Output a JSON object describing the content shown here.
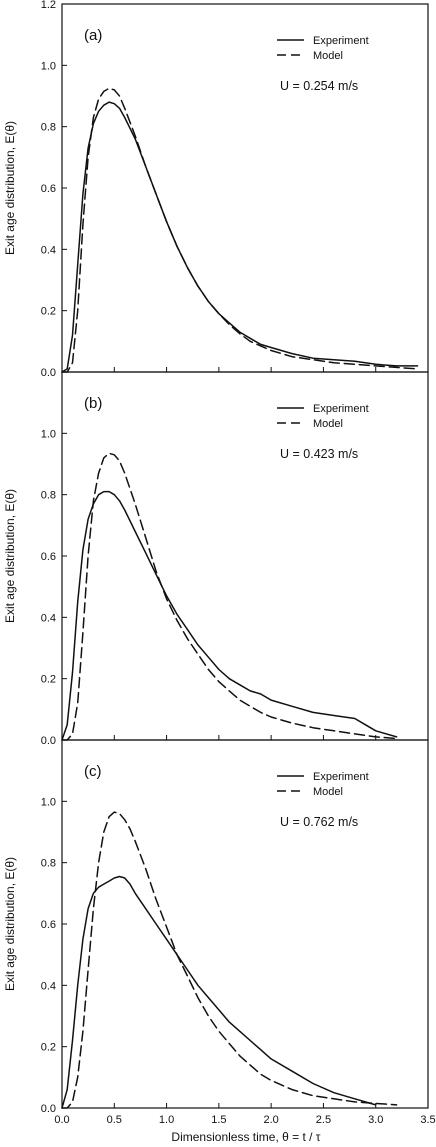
{
  "figure": {
    "xlabel": "Dimensionless time, θ = t / τ",
    "x_ticks": [
      "0.0",
      "0.5",
      "1.0",
      "1.5",
      "2.0",
      "2.5",
      "3.0",
      "3.5"
    ]
  },
  "chart_data": [
    {
      "type": "line",
      "panel_label": "(a)",
      "annotation": "U = 0.254 m/s",
      "ylabel": "Exit age distribution, E(θ)",
      "xlim": [
        0,
        3.5
      ],
      "ylim": [
        0,
        1.2
      ],
      "y_ticks": [
        "0.0",
        "0.2",
        "0.4",
        "0.6",
        "0.8",
        "1.0",
        "1.2"
      ],
      "legend": {
        "position": "top-right",
        "entries": [
          "Experiment",
          "Model"
        ]
      },
      "series": [
        {
          "name": "Experiment",
          "style": "solid",
          "x": [
            0.0,
            0.05,
            0.1,
            0.15,
            0.2,
            0.25,
            0.3,
            0.35,
            0.4,
            0.45,
            0.5,
            0.55,
            0.6,
            0.7,
            0.8,
            0.9,
            1.0,
            1.1,
            1.2,
            1.3,
            1.4,
            1.5,
            1.6,
            1.7,
            1.8,
            1.9,
            2.0,
            2.2,
            2.4,
            2.6,
            2.8,
            3.0,
            3.2,
            3.4
          ],
          "y": [
            0.0,
            0.01,
            0.12,
            0.35,
            0.58,
            0.73,
            0.81,
            0.85,
            0.87,
            0.88,
            0.875,
            0.86,
            0.83,
            0.76,
            0.67,
            0.58,
            0.49,
            0.41,
            0.34,
            0.28,
            0.23,
            0.19,
            0.16,
            0.13,
            0.11,
            0.09,
            0.08,
            0.06,
            0.045,
            0.04,
            0.035,
            0.025,
            0.02,
            0.02
          ]
        },
        {
          "name": "Model",
          "style": "dashed",
          "x": [
            0.0,
            0.05,
            0.1,
            0.15,
            0.2,
            0.25,
            0.3,
            0.35,
            0.4,
            0.45,
            0.5,
            0.55,
            0.6,
            0.7,
            0.8,
            0.9,
            1.0,
            1.1,
            1.2,
            1.3,
            1.4,
            1.5,
            1.6,
            1.7,
            1.8,
            1.9,
            2.0,
            2.2,
            2.4,
            2.6,
            2.8,
            3.0,
            3.2,
            3.4
          ],
          "y": [
            0.0,
            0.0,
            0.03,
            0.2,
            0.48,
            0.7,
            0.83,
            0.89,
            0.915,
            0.925,
            0.92,
            0.9,
            0.86,
            0.77,
            0.67,
            0.58,
            0.49,
            0.41,
            0.34,
            0.28,
            0.23,
            0.19,
            0.155,
            0.125,
            0.1,
            0.085,
            0.07,
            0.05,
            0.04,
            0.03,
            0.025,
            0.02,
            0.015,
            0.01
          ]
        }
      ]
    },
    {
      "type": "line",
      "panel_label": "(b)",
      "annotation": "U = 0.423 m/s",
      "ylabel": "Exit age distribution, E(θ)",
      "xlim": [
        0,
        3.5
      ],
      "ylim": [
        0,
        1.2
      ],
      "y_ticks": [
        "0.0",
        "0.2",
        "0.4",
        "0.6",
        "0.8",
        "1.0"
      ],
      "legend": {
        "position": "top-right",
        "entries": [
          "Experiment",
          "Model"
        ]
      },
      "series": [
        {
          "name": "Experiment",
          "style": "solid",
          "x": [
            0.0,
            0.05,
            0.1,
            0.15,
            0.2,
            0.25,
            0.3,
            0.35,
            0.4,
            0.45,
            0.5,
            0.55,
            0.6,
            0.7,
            0.8,
            0.9,
            1.0,
            1.1,
            1.2,
            1.3,
            1.4,
            1.5,
            1.6,
            1.7,
            1.8,
            1.9,
            2.0,
            2.2,
            2.4,
            2.6,
            2.8,
            2.9,
            3.0,
            3.2
          ],
          "y": [
            0.0,
            0.05,
            0.22,
            0.45,
            0.62,
            0.72,
            0.77,
            0.8,
            0.81,
            0.81,
            0.8,
            0.78,
            0.75,
            0.68,
            0.61,
            0.54,
            0.47,
            0.41,
            0.36,
            0.31,
            0.27,
            0.23,
            0.2,
            0.18,
            0.16,
            0.15,
            0.13,
            0.11,
            0.09,
            0.08,
            0.07,
            0.05,
            0.03,
            0.01
          ]
        },
        {
          "name": "Model",
          "style": "dashed",
          "x": [
            0.0,
            0.05,
            0.1,
            0.15,
            0.2,
            0.25,
            0.3,
            0.35,
            0.4,
            0.45,
            0.5,
            0.55,
            0.6,
            0.7,
            0.8,
            0.9,
            1.0,
            1.1,
            1.2,
            1.3,
            1.4,
            1.5,
            1.6,
            1.7,
            1.8,
            1.9,
            2.0,
            2.2,
            2.4,
            2.6,
            2.8,
            3.0,
            3.2
          ],
          "y": [
            0.0,
            0.0,
            0.02,
            0.12,
            0.35,
            0.6,
            0.78,
            0.87,
            0.92,
            0.935,
            0.93,
            0.91,
            0.87,
            0.77,
            0.66,
            0.55,
            0.46,
            0.39,
            0.33,
            0.28,
            0.23,
            0.19,
            0.16,
            0.13,
            0.11,
            0.09,
            0.075,
            0.055,
            0.04,
            0.03,
            0.02,
            0.01,
            0.005
          ]
        }
      ]
    },
    {
      "type": "line",
      "panel_label": "(c)",
      "annotation": "U = 0.762 m/s",
      "ylabel": "Exit age distribution, E(θ)",
      "xlim": [
        0,
        3.5
      ],
      "ylim": [
        0,
        1.2
      ],
      "y_ticks": [
        "0.0",
        "0.2",
        "0.4",
        "0.6",
        "0.8",
        "1.0"
      ],
      "legend": {
        "position": "top-right",
        "entries": [
          "Experiment",
          "Model"
        ]
      },
      "series": [
        {
          "name": "Experiment",
          "style": "solid",
          "x": [
            0.0,
            0.05,
            0.1,
            0.15,
            0.2,
            0.25,
            0.3,
            0.35,
            0.4,
            0.45,
            0.5,
            0.55,
            0.6,
            0.65,
            0.7,
            0.8,
            0.9,
            1.0,
            1.1,
            1.2,
            1.3,
            1.4,
            1.5,
            1.6,
            1.7,
            1.8,
            1.9,
            2.0,
            2.2,
            2.4,
            2.6,
            2.8,
            3.0
          ],
          "y": [
            0.0,
            0.06,
            0.22,
            0.4,
            0.55,
            0.65,
            0.7,
            0.72,
            0.73,
            0.74,
            0.75,
            0.755,
            0.75,
            0.73,
            0.7,
            0.65,
            0.6,
            0.55,
            0.5,
            0.45,
            0.4,
            0.36,
            0.32,
            0.28,
            0.25,
            0.22,
            0.19,
            0.16,
            0.12,
            0.08,
            0.05,
            0.03,
            0.01
          ]
        },
        {
          "name": "Model",
          "style": "dashed",
          "x": [
            0.0,
            0.05,
            0.1,
            0.15,
            0.2,
            0.25,
            0.3,
            0.35,
            0.4,
            0.45,
            0.5,
            0.55,
            0.6,
            0.65,
            0.7,
            0.8,
            0.9,
            1.0,
            1.1,
            1.2,
            1.3,
            1.4,
            1.5,
            1.6,
            1.7,
            1.8,
            1.9,
            2.0,
            2.2,
            2.4,
            2.6,
            2.8,
            3.0,
            3.2
          ],
          "y": [
            0.0,
            0.0,
            0.02,
            0.1,
            0.25,
            0.45,
            0.65,
            0.8,
            0.9,
            0.95,
            0.965,
            0.96,
            0.94,
            0.91,
            0.87,
            0.78,
            0.68,
            0.59,
            0.5,
            0.43,
            0.36,
            0.3,
            0.25,
            0.21,
            0.17,
            0.14,
            0.11,
            0.09,
            0.06,
            0.04,
            0.03,
            0.02,
            0.015,
            0.01
          ]
        }
      ]
    }
  ]
}
